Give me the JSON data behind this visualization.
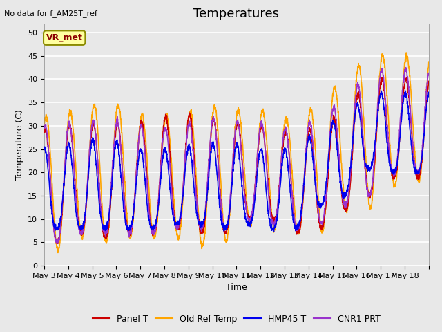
{
  "title": "Temperatures",
  "xlabel": "Time",
  "ylabel": "Temperature (C)",
  "note": "No data for f_AM25T_ref",
  "annotation": "VR_met",
  "ylim": [
    0,
    52
  ],
  "yticks": [
    0,
    5,
    10,
    15,
    20,
    25,
    30,
    35,
    40,
    45,
    50
  ],
  "x_labels": [
    "May 3",
    "May 4",
    "May 5",
    "May 6",
    "May 7",
    "May 8",
    "May 9",
    "May 10",
    "May 11",
    "May 12",
    "May 13",
    "May 14",
    "May 15",
    "May 16",
    "May 17",
    "May 18"
  ],
  "series": {
    "Panel T": {
      "color": "#CC0000",
      "lw": 1.2
    },
    "Old Ref Temp": {
      "color": "#FFA500",
      "lw": 1.2
    },
    "HMP45 T": {
      "color": "#0000EE",
      "lw": 1.2
    },
    "CNR1 PRT": {
      "color": "#9933CC",
      "lw": 1.2
    }
  },
  "fig_bg": "#E8E8E8",
  "plot_bg": "#E8E8E8",
  "grid_color": "#FFFFFF",
  "title_fontsize": 13,
  "label_fontsize": 9,
  "tick_fontsize": 8,
  "note_fontsize": 8,
  "annot_fontsize": 9,
  "legend_fontsize": 9
}
